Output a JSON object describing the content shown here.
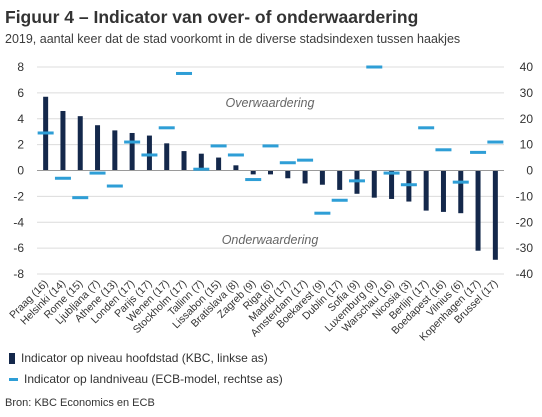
{
  "title": "Figuur 4 – Indicator van over- of onderwaardering",
  "subtitle": "2019, aantal keer dat de stad voorkomt in de diverse stadsindexen tussen haakjes",
  "source": "Bron: KBC Economics en ECB",
  "colors": {
    "bar": "#14284b",
    "marker": "#2e9ed6",
    "grid": "#dcdcdc",
    "axis": "#9a9a9a",
    "text": "#333333"
  },
  "chart_data": {
    "type": "bar",
    "categories": [
      "Praag (16)",
      "Helsinki (14)",
      "Rome (15)",
      "Ljubljana (7)",
      "Athene (13)",
      "Londen (17)",
      "Parijs (17)",
      "Wenen (17)",
      "Stockholm (17)",
      "Tallinn (7)",
      "Lissabon (15)",
      "Bratislava (8)",
      "Zagreb (9)",
      "Riga (6)",
      "Madrid (17)",
      "Amsterdam (17)",
      "Boekarest (9)",
      "Dublin (17)",
      "Sofia (9)",
      "Luxemburg (9)",
      "Warschau (16)",
      "Nicosia (3)",
      "Berlijn (17)",
      "Boedapest (16)",
      "Vilnius (6)",
      "Kopenhagen (17)",
      "Brussel (17)"
    ],
    "series": [
      {
        "name": "Indicator op niveau hoofdstad (KBC, linkse as)",
        "axis": "left",
        "kind": "bar",
        "values": [
          5.7,
          4.6,
          4.2,
          3.5,
          3.1,
          2.9,
          2.7,
          2.1,
          1.5,
          1.3,
          1.0,
          0.4,
          -0.3,
          -0.3,
          -0.6,
          -1.0,
          -1.1,
          -1.5,
          -1.8,
          -2.1,
          -2.2,
          -2.4,
          -3.1,
          -3.2,
          -3.3,
          -6.2,
          -6.9
        ]
      },
      {
        "name": "Indicator op landniveau (ECB-model, rechtse as)",
        "axis": "right",
        "kind": "marker",
        "values": [
          14.5,
          -3,
          -10.5,
          -1,
          -6,
          11,
          6,
          16.5,
          37.5,
          0.5,
          9.5,
          6,
          -3.5,
          9.5,
          3,
          4,
          -16.5,
          -11.5,
          -4,
          40,
          -1,
          -5.5,
          16.5,
          8,
          -4.5,
          7,
          11
        ]
      }
    ],
    "ylim_left": [
      -8,
      8
    ],
    "yticks_left": [
      "8",
      "6",
      "4",
      "2",
      "0",
      "-2",
      "-4",
      "-6",
      "-8"
    ],
    "ylim_right": [
      -40,
      40
    ],
    "yticks_right": [
      "40",
      "30",
      "20",
      "10",
      "0",
      "-10",
      "-20",
      "-30",
      "-40"
    ],
    "annotations": {
      "over": "Overwaardering",
      "under": "Onderwaardering"
    },
    "grid": true,
    "legend_position": "bottom-left"
  }
}
